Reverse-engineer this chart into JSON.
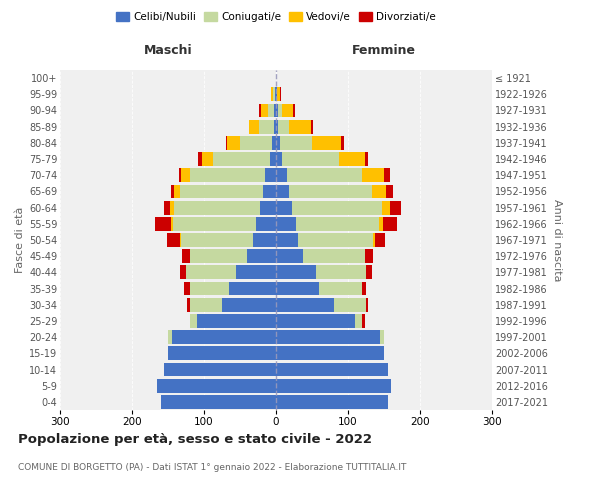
{
  "age_groups": [
    "0-4",
    "5-9",
    "10-14",
    "15-19",
    "20-24",
    "25-29",
    "30-34",
    "35-39",
    "40-44",
    "45-49",
    "50-54",
    "55-59",
    "60-64",
    "65-69",
    "70-74",
    "75-79",
    "80-84",
    "85-89",
    "90-94",
    "95-99",
    "100+"
  ],
  "birth_years": [
    "2017-2021",
    "2012-2016",
    "2007-2011",
    "2002-2006",
    "1997-2001",
    "1992-1996",
    "1987-1991",
    "1982-1986",
    "1977-1981",
    "1972-1976",
    "1967-1971",
    "1962-1966",
    "1957-1961",
    "1952-1956",
    "1947-1951",
    "1942-1946",
    "1937-1941",
    "1932-1936",
    "1927-1931",
    "1922-1926",
    "≤ 1921"
  ],
  "male_celibe": [
    160,
    165,
    155,
    150,
    145,
    110,
    75,
    65,
    55,
    40,
    32,
    28,
    22,
    18,
    15,
    8,
    5,
    3,
    3,
    1,
    0
  ],
  "male_coniugato": [
    0,
    0,
    0,
    0,
    5,
    10,
    45,
    55,
    70,
    80,
    100,
    115,
    120,
    115,
    105,
    80,
    45,
    20,
    8,
    3,
    0
  ],
  "male_vedovo": [
    0,
    0,
    0,
    0,
    0,
    0,
    0,
    0,
    0,
    0,
    2,
    3,
    5,
    8,
    12,
    15,
    18,
    15,
    10,
    3,
    0
  ],
  "male_divorziato": [
    0,
    0,
    0,
    0,
    0,
    0,
    3,
    8,
    8,
    10,
    18,
    22,
    8,
    5,
    3,
    5,
    2,
    0,
    2,
    0,
    0
  ],
  "female_celibe": [
    155,
    160,
    155,
    150,
    145,
    110,
    80,
    60,
    55,
    38,
    30,
    28,
    22,
    18,
    15,
    8,
    5,
    3,
    3,
    1,
    0
  ],
  "female_coniugato": [
    0,
    0,
    0,
    0,
    5,
    10,
    45,
    60,
    70,
    85,
    105,
    115,
    125,
    115,
    105,
    80,
    45,
    15,
    5,
    1,
    0
  ],
  "female_vedovo": [
    0,
    0,
    0,
    0,
    0,
    0,
    0,
    0,
    0,
    0,
    2,
    5,
    12,
    20,
    30,
    35,
    40,
    30,
    15,
    3,
    0
  ],
  "female_divorziato": [
    0,
    0,
    0,
    0,
    0,
    3,
    3,
    5,
    8,
    12,
    15,
    20,
    15,
    10,
    8,
    5,
    5,
    3,
    3,
    2,
    0
  ],
  "colors": {
    "celibe": "#4472c4",
    "coniugato": "#c5d9a0",
    "vedovo": "#ffc000",
    "divorziato": "#cc0000"
  },
  "title": "Popolazione per età, sesso e stato civile - 2022",
  "subtitle": "COMUNE DI BORGETTO (PA) - Dati ISTAT 1° gennaio 2022 - Elaborazione TUTTITALIA.IT",
  "xlabel_left": "Maschi",
  "xlabel_right": "Femmine",
  "ylabel_left": "Fasce di età",
  "ylabel_right": "Anni di nascita",
  "xlim": 300,
  "legend_labels": [
    "Celibi/Nubili",
    "Coniugati/e",
    "Vedovi/e",
    "Divorziati/e"
  ],
  "bg_color": "#ffffff",
  "grid_color": "#cccccc",
  "ax_bg_color": "#f0f0f0"
}
